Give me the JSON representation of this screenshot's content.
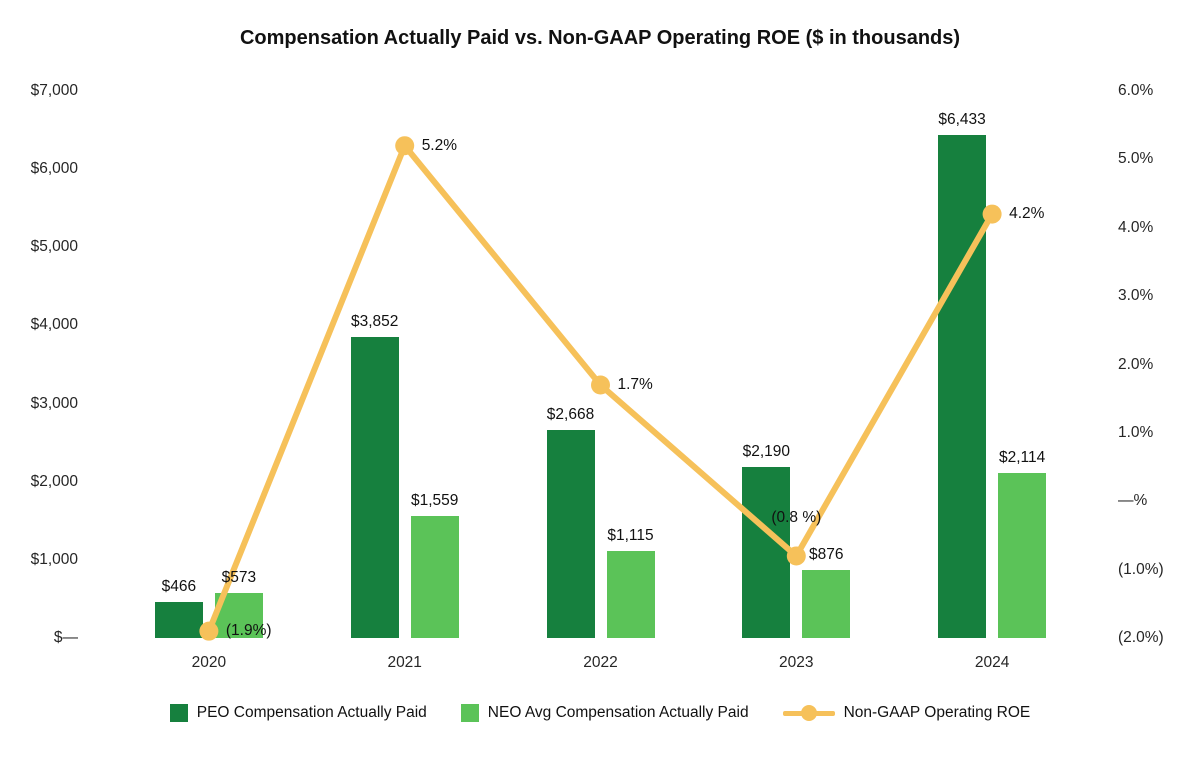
{
  "title": "Compensation Actually Paid vs. Non-GAAP Operating ROE ($ in thousands)",
  "chart_data": {
    "type": "combo",
    "categories": [
      "2020",
      "2021",
      "2022",
      "2023",
      "2024"
    ],
    "series": [
      {
        "name": "PEO Compensation Actually Paid",
        "type": "bar",
        "axis": "left",
        "color": "#16803E",
        "values": [
          466,
          3852,
          2668,
          2190,
          6433
        ],
        "labels": [
          "$466",
          "$3,852",
          "$2,668",
          "$2,190",
          "$6,433"
        ]
      },
      {
        "name": "NEO Avg Compensation Actually Paid",
        "type": "bar",
        "axis": "left",
        "color": "#5BC358",
        "values": [
          573,
          1559,
          1115,
          876,
          2114
        ],
        "labels": [
          "$573",
          "$1,559",
          "$1,115",
          "$876",
          "$2,114"
        ]
      },
      {
        "name": "Non-GAAP Operating ROE",
        "type": "line",
        "axis": "right",
        "color": "#F6C15A",
        "values": [
          -1.9,
          5.2,
          1.7,
          -0.8,
          4.2
        ],
        "labels": [
          "(1.9%)",
          "5.2%",
          "1.7%",
          "(0.8 %)",
          "4.2%"
        ],
        "label_positions": [
          "right",
          "right",
          "right",
          "above",
          "right"
        ]
      }
    ],
    "left_axis": {
      "ticks": [
        "$7,000",
        "$6,000",
        "$5,000",
        "$4,000",
        "$3,000",
        "$2,000",
        "$1,000",
        "$—"
      ],
      "min": 0,
      "max": 7000
    },
    "right_axis": {
      "ticks": [
        "6.0%",
        "5.0%",
        "4.0%",
        "3.0%",
        "2.0%",
        "1.0%",
        "—%",
        "(1.0%)",
        "(2.0%)"
      ],
      "min": -2,
      "max": 6
    },
    "grid": false,
    "legend_position": "bottom"
  }
}
